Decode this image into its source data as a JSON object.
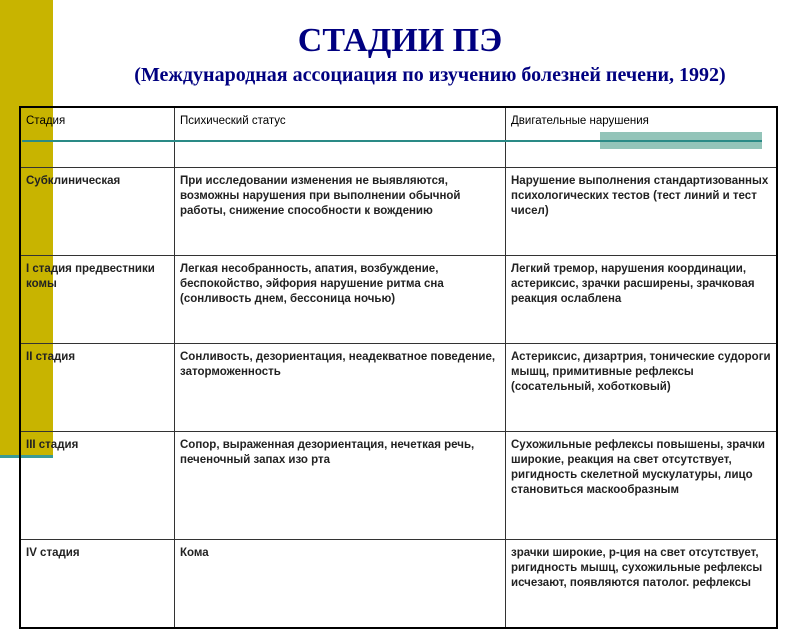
{
  "title": "СТАДИИ ПЭ",
  "subtitle": "(Международная ассоциация по изучению  болезней печени, 1992)",
  "colors": {
    "accent_bar": "#c8b400",
    "teal": "#2a8a86",
    "title": "#000080"
  },
  "table": {
    "headers": [
      "Стадия",
      "Психический статус",
      "Двигательные нарушения"
    ],
    "rows": [
      [
        "Субклиническая",
        "При  исследовании изменения не выявляются, возможны нарушения при выполнении обычной работы, снижение способности к вождению",
        "Нарушение выполнения стандартизованных психологических тестов (тест линий и тест чисел)"
      ],
      [
        "I стадия предвестники комы",
        "Легкая несобранность, апатия, возбуждение, беспокойство, эйфория нарушение ритма сна (сонливость днем, бессоница ночью)",
        "Легкий тремор, нарушения координации, астериксис, зрачки расширены, зрачковая реакция ослаблена"
      ],
      [
        "II стадия",
        "Сонливость, дезориентация, неадекватное поведение, заторможенность",
        "Астериксис, дизартрия, тонические судороги мышц, примитивные рефлексы (сосательный, хоботковый)"
      ],
      [
        "III стадия",
        "Сопор, выраженная дезориентация, нечеткая речь, печеночный запах изо рта",
        "Сухожильные рефлексы повышены, зрачки широкие, реакция на свет отсутствует, ригидность скелетной мускулатуры, лицо становиться маскообразным"
      ],
      [
        "IV стадия",
        "Кома",
        "зрачки широкие, р-ция на свет отсутствует, ригидность мышц, сухожильные рефлексы исчезают, появляются патолог. рефлексы"
      ]
    ]
  }
}
